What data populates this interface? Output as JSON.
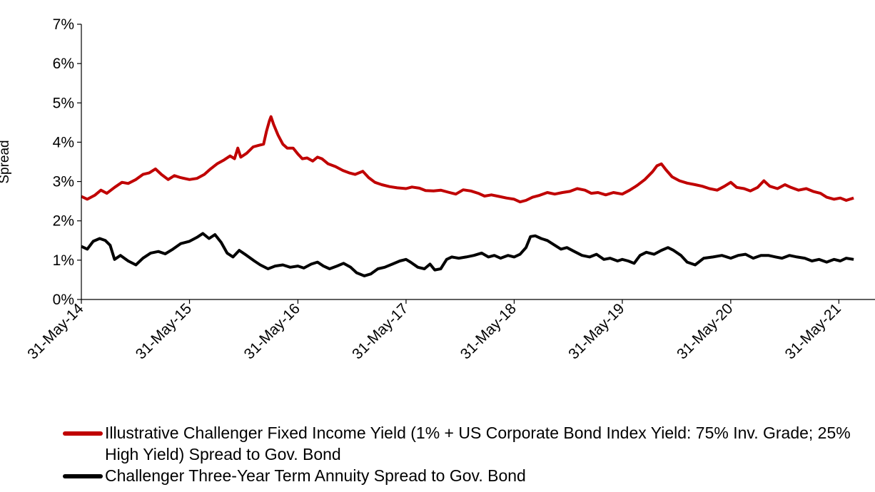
{
  "chart_data": {
    "type": "line",
    "title": "",
    "xlabel": "",
    "ylabel": "Spread",
    "ylim": [
      0,
      0.07
    ],
    "xlim": [
      "2014-05-31",
      "2021-09-30"
    ],
    "y_ticks": [
      "0%",
      "1%",
      "2%",
      "3%",
      "4%",
      "5%",
      "6%",
      "7%"
    ],
    "x_ticks": [
      "31-May-14",
      "31-May-15",
      "31-May-16",
      "31-May-17",
      "31-May-18",
      "31-May-19",
      "31-May-20",
      "31-May-21"
    ],
    "grid": false,
    "legend_position": "bottom",
    "series": [
      {
        "name": "Illustrative Challenger Fixed Income Yield (1% + US Corporate Bond Index Yield: 75% Inv. Grade; 25% High Yield) Spread to Gov. Bond",
        "color": "#c00000",
        "points": [
          [
            "2014-05-31",
            0.0262
          ],
          [
            "2014-06-20",
            0.0255
          ],
          [
            "2014-07-15",
            0.0265
          ],
          [
            "2014-08-05",
            0.0278
          ],
          [
            "2014-08-25",
            0.027
          ],
          [
            "2014-09-20",
            0.0285
          ],
          [
            "2014-10-15",
            0.0298
          ],
          [
            "2014-11-05",
            0.0295
          ],
          [
            "2014-12-01",
            0.0305
          ],
          [
            "2014-12-25",
            0.0318
          ],
          [
            "2015-01-15",
            0.0322
          ],
          [
            "2015-02-05",
            0.0332
          ],
          [
            "2015-02-25",
            0.0318
          ],
          [
            "2015-03-20",
            0.0305
          ],
          [
            "2015-04-10",
            0.0315
          ],
          [
            "2015-05-01",
            0.031
          ],
          [
            "2015-05-31",
            0.0305
          ],
          [
            "2015-06-25",
            0.0308
          ],
          [
            "2015-07-20",
            0.0318
          ],
          [
            "2015-08-10",
            0.0332
          ],
          [
            "2015-09-01",
            0.0345
          ],
          [
            "2015-09-25",
            0.0355
          ],
          [
            "2015-10-15",
            0.0365
          ],
          [
            "2015-10-30",
            0.0358
          ],
          [
            "2015-11-10",
            0.0385
          ],
          [
            "2015-11-20",
            0.0362
          ],
          [
            "2015-12-10",
            0.0372
          ],
          [
            "2016-01-01",
            0.0388
          ],
          [
            "2016-01-20",
            0.0392
          ],
          [
            "2016-02-05",
            0.0395
          ],
          [
            "2016-02-15",
            0.0428
          ],
          [
            "2016-02-25",
            0.0455
          ],
          [
            "2016-03-01",
            0.0465
          ],
          [
            "2016-03-10",
            0.0445
          ],
          [
            "2016-03-25",
            0.0418
          ],
          [
            "2016-04-10",
            0.0395
          ],
          [
            "2016-04-25",
            0.0385
          ],
          [
            "2016-05-15",
            0.0385
          ],
          [
            "2016-05-31",
            0.037
          ],
          [
            "2016-06-15",
            0.0358
          ],
          [
            "2016-07-01",
            0.036
          ],
          [
            "2016-07-20",
            0.0352
          ],
          [
            "2016-08-05",
            0.0362
          ],
          [
            "2016-08-20",
            0.0358
          ],
          [
            "2016-09-10",
            0.0345
          ],
          [
            "2016-10-05",
            0.0338
          ],
          [
            "2016-10-30",
            0.0328
          ],
          [
            "2016-11-20",
            0.0322
          ],
          [
            "2016-12-10",
            0.0318
          ],
          [
            "2017-01-05",
            0.0326
          ],
          [
            "2017-01-25",
            0.031
          ],
          [
            "2017-02-15",
            0.0298
          ],
          [
            "2017-03-10",
            0.0292
          ],
          [
            "2017-04-05",
            0.0287
          ],
          [
            "2017-05-01",
            0.0284
          ],
          [
            "2017-05-31",
            0.0282
          ],
          [
            "2017-06-20",
            0.0286
          ],
          [
            "2017-07-15",
            0.0283
          ],
          [
            "2017-08-05",
            0.0277
          ],
          [
            "2017-09-01",
            0.0276
          ],
          [
            "2017-09-25",
            0.0278
          ],
          [
            "2017-10-20",
            0.0273
          ],
          [
            "2017-11-15",
            0.0268
          ],
          [
            "2017-12-10",
            0.0279
          ],
          [
            "2018-01-05",
            0.0276
          ],
          [
            "2018-01-30",
            0.027
          ],
          [
            "2018-02-20",
            0.0263
          ],
          [
            "2018-03-15",
            0.0266
          ],
          [
            "2018-04-10",
            0.0262
          ],
          [
            "2018-05-05",
            0.0258
          ],
          [
            "2018-05-31",
            0.0255
          ],
          [
            "2018-06-20",
            0.0248
          ],
          [
            "2018-07-10",
            0.0252
          ],
          [
            "2018-08-01",
            0.026
          ],
          [
            "2018-08-25",
            0.0265
          ],
          [
            "2018-09-20",
            0.0272
          ],
          [
            "2018-10-15",
            0.0268
          ],
          [
            "2018-11-10",
            0.0272
          ],
          [
            "2018-12-05",
            0.0275
          ],
          [
            "2018-12-30",
            0.0282
          ],
          [
            "2019-01-25",
            0.0278
          ],
          [
            "2019-02-15",
            0.027
          ],
          [
            "2019-03-10",
            0.0272
          ],
          [
            "2019-04-05",
            0.0266
          ],
          [
            "2019-05-01",
            0.0272
          ],
          [
            "2019-05-31",
            0.0268
          ],
          [
            "2019-06-25",
            0.0278
          ],
          [
            "2019-07-20",
            0.029
          ],
          [
            "2019-08-15",
            0.0305
          ],
          [
            "2019-09-10",
            0.0325
          ],
          [
            "2019-09-25",
            0.034
          ],
          [
            "2019-10-10",
            0.0345
          ],
          [
            "2019-10-25",
            0.033
          ],
          [
            "2019-11-15",
            0.0312
          ],
          [
            "2019-12-10",
            0.0302
          ],
          [
            "2020-01-05",
            0.0296
          ],
          [
            "2020-02-01",
            0.0292
          ],
          [
            "2020-02-25",
            0.0288
          ],
          [
            "2020-03-20",
            0.0282
          ],
          [
            "2020-04-15",
            0.0278
          ],
          [
            "2020-05-10",
            0.0288
          ],
          [
            "2020-05-31",
            0.0298
          ],
          [
            "2020-06-20",
            0.0285
          ],
          [
            "2020-07-15",
            0.0282
          ],
          [
            "2020-08-05",
            0.0276
          ],
          [
            "2020-08-30",
            0.0285
          ],
          [
            "2020-09-20",
            0.0302
          ],
          [
            "2020-10-10",
            0.0288
          ],
          [
            "2020-11-05",
            0.0282
          ],
          [
            "2020-11-30",
            0.0292
          ],
          [
            "2020-12-20",
            0.0285
          ],
          [
            "2021-01-15",
            0.0278
          ],
          [
            "2021-02-10",
            0.0282
          ],
          [
            "2021-03-05",
            0.0275
          ],
          [
            "2021-03-30",
            0.027
          ],
          [
            "2021-04-20",
            0.026
          ],
          [
            "2021-05-15",
            0.0255
          ],
          [
            "2021-06-05",
            0.0258
          ],
          [
            "2021-06-25",
            0.0252
          ],
          [
            "2021-07-20",
            0.0258
          ]
        ]
      },
      {
        "name": "Challenger Three-Year Term Annuity Spread to Gov. Bond",
        "color": "#000000",
        "points": [
          [
            "2014-05-31",
            0.0135
          ],
          [
            "2014-06-20",
            0.0128
          ],
          [
            "2014-07-10",
            0.0148
          ],
          [
            "2014-08-01",
            0.0155
          ],
          [
            "2014-08-20",
            0.015
          ],
          [
            "2014-09-05",
            0.0138
          ],
          [
            "2014-09-20",
            0.0102
          ],
          [
            "2014-10-10",
            0.0112
          ],
          [
            "2014-11-05",
            0.0098
          ],
          [
            "2014-12-01",
            0.0088
          ],
          [
            "2014-12-25",
            0.0105
          ],
          [
            "2015-01-20",
            0.0118
          ],
          [
            "2015-02-15",
            0.0122
          ],
          [
            "2015-03-10",
            0.0116
          ],
          [
            "2015-04-05",
            0.0128
          ],
          [
            "2015-05-01",
            0.0142
          ],
          [
            "2015-05-31",
            0.0148
          ],
          [
            "2015-06-25",
            0.0158
          ],
          [
            "2015-07-15",
            0.0168
          ],
          [
            "2015-08-05",
            0.0155
          ],
          [
            "2015-08-25",
            0.0165
          ],
          [
            "2015-09-15",
            0.0145
          ],
          [
            "2015-10-05",
            0.0118
          ],
          [
            "2015-10-25",
            0.0108
          ],
          [
            "2015-11-15",
            0.0125
          ],
          [
            "2015-12-10",
            0.0112
          ],
          [
            "2016-01-05",
            0.0098
          ],
          [
            "2016-01-25",
            0.0088
          ],
          [
            "2016-02-20",
            0.0078
          ],
          [
            "2016-03-15",
            0.0085
          ],
          [
            "2016-04-10",
            0.0088
          ],
          [
            "2016-05-05",
            0.0082
          ],
          [
            "2016-05-31",
            0.0085
          ],
          [
            "2016-06-20",
            0.008
          ],
          [
            "2016-07-15",
            0.009
          ],
          [
            "2016-08-05",
            0.0095
          ],
          [
            "2016-08-25",
            0.0085
          ],
          [
            "2016-09-15",
            0.0078
          ],
          [
            "2016-10-10",
            0.0085
          ],
          [
            "2016-11-01",
            0.0092
          ],
          [
            "2016-11-25",
            0.0082
          ],
          [
            "2016-12-15",
            0.0068
          ],
          [
            "2017-01-10",
            0.006
          ],
          [
            "2017-02-01",
            0.0065
          ],
          [
            "2017-02-25",
            0.0078
          ],
          [
            "2017-03-20",
            0.0082
          ],
          [
            "2017-04-15",
            0.009
          ],
          [
            "2017-05-10",
            0.0098
          ],
          [
            "2017-05-31",
            0.0102
          ],
          [
            "2017-06-15",
            0.0095
          ],
          [
            "2017-07-10",
            0.0082
          ],
          [
            "2017-08-01",
            0.0078
          ],
          [
            "2017-08-20",
            0.009
          ],
          [
            "2017-09-05",
            0.0075
          ],
          [
            "2017-09-25",
            0.0078
          ],
          [
            "2017-10-15",
            0.0102
          ],
          [
            "2017-11-01",
            0.0108
          ],
          [
            "2017-11-25",
            0.0105
          ],
          [
            "2017-12-20",
            0.0108
          ],
          [
            "2018-01-15",
            0.0112
          ],
          [
            "2018-02-10",
            0.0118
          ],
          [
            "2018-03-05",
            0.0108
          ],
          [
            "2018-03-25",
            0.0112
          ],
          [
            "2018-04-15",
            0.0105
          ],
          [
            "2018-05-10",
            0.0112
          ],
          [
            "2018-05-31",
            0.0108
          ],
          [
            "2018-06-20",
            0.0115
          ],
          [
            "2018-07-10",
            0.0132
          ],
          [
            "2018-07-25",
            0.016
          ],
          [
            "2018-08-10",
            0.0162
          ],
          [
            "2018-08-30",
            0.0155
          ],
          [
            "2018-09-20",
            0.015
          ],
          [
            "2018-10-15",
            0.0138
          ],
          [
            "2018-11-05",
            0.0128
          ],
          [
            "2018-11-25",
            0.0132
          ],
          [
            "2018-12-20",
            0.0122
          ],
          [
            "2019-01-15",
            0.0112
          ],
          [
            "2019-02-10",
            0.0108
          ],
          [
            "2019-03-05",
            0.0115
          ],
          [
            "2019-03-30",
            0.0102
          ],
          [
            "2019-04-20",
            0.0105
          ],
          [
            "2019-05-15",
            0.0098
          ],
          [
            "2019-05-31",
            0.0102
          ],
          [
            "2019-06-20",
            0.0098
          ],
          [
            "2019-07-10",
            0.0092
          ],
          [
            "2019-07-30",
            0.0112
          ],
          [
            "2019-08-20",
            0.012
          ],
          [
            "2019-09-15",
            0.0115
          ],
          [
            "2019-10-10",
            0.0125
          ],
          [
            "2019-11-01",
            0.0132
          ],
          [
            "2019-11-20",
            0.0125
          ],
          [
            "2019-12-15",
            0.0112
          ],
          [
            "2020-01-05",
            0.0095
          ],
          [
            "2020-02-01",
            0.0088
          ],
          [
            "2020-03-01",
            0.0105
          ],
          [
            "2020-04-01",
            0.0108
          ],
          [
            "2020-05-01",
            0.0112
          ],
          [
            "2020-05-31",
            0.0105
          ],
          [
            "2020-06-25",
            0.0112
          ],
          [
            "2020-07-20",
            0.0115
          ],
          [
            "2020-08-15",
            0.0105
          ],
          [
            "2020-09-10",
            0.0112
          ],
          [
            "2020-10-05",
            0.0112
          ],
          [
            "2020-10-30",
            0.0108
          ],
          [
            "2020-11-20",
            0.0105
          ],
          [
            "2020-12-15",
            0.0112
          ],
          [
            "2021-01-10",
            0.0108
          ],
          [
            "2021-02-05",
            0.0105
          ],
          [
            "2021-03-01",
            0.0098
          ],
          [
            "2021-03-25",
            0.0102
          ],
          [
            "2021-04-20",
            0.0095
          ],
          [
            "2021-05-15",
            0.0102
          ],
          [
            "2021-06-05",
            0.0098
          ],
          [
            "2021-06-25",
            0.0105
          ],
          [
            "2021-07-20",
            0.0102
          ]
        ]
      }
    ]
  },
  "legend": {
    "items": [
      {
        "label": "Illustrative Challenger Fixed Income Yield (1% + US Corporate Bond Index Yield: 75% Inv. Grade; 25% High Yield) Spread to Gov. Bond",
        "color": "#c00000"
      },
      {
        "label": "Challenger Three-Year Term Annuity Spread to Gov. Bond",
        "color": "#000000"
      }
    ]
  }
}
